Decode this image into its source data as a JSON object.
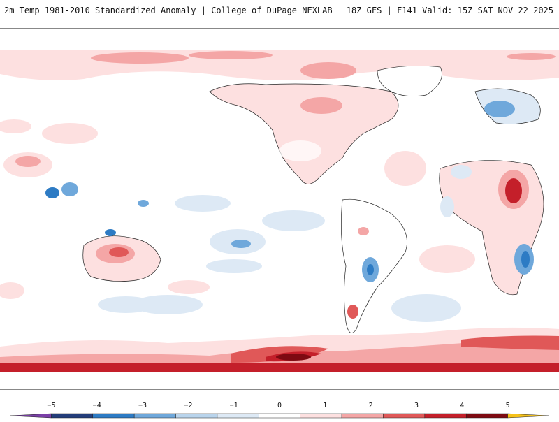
{
  "header": {
    "left_title": "2m Temp 1981-2010 Standardized Anomaly | College of DuPage NEXLAB",
    "right_title": "18Z GFS | F141 Valid: 15Z SAT NOV 22 2025"
  },
  "colorbar": {
    "ticks": [
      {
        "label": "−5",
        "value": -5
      },
      {
        "label": "−4",
        "value": -4
      },
      {
        "label": "−3",
        "value": -3
      },
      {
        "label": "−2",
        "value": -2
      },
      {
        "label": "−1",
        "value": -1
      },
      {
        "label": "0",
        "value": 0
      },
      {
        "label": "1",
        "value": 1
      },
      {
        "label": "2",
        "value": 2
      },
      {
        "label": "3",
        "value": 3
      },
      {
        "label": "4",
        "value": 4
      },
      {
        "label": "5",
        "value": 5
      }
    ],
    "colors": [
      "#7b3fa8",
      "#233d7a",
      "#2d7bc4",
      "#6fa8db",
      "#b9d4ec",
      "#dde9f5",
      "#ffffff",
      "#fde0e0",
      "#f4a6a6",
      "#e05858",
      "#c41f2a",
      "#7e0a12",
      "#f6c21a"
    ]
  }
}
